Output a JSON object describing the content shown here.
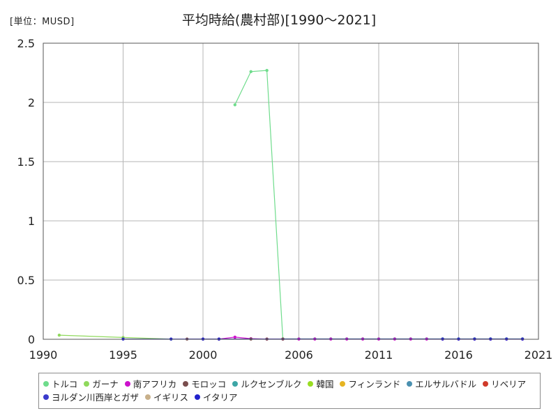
{
  "header": {
    "unit_label": "[単位：MUSD]",
    "title": "平均時給(農村部)[1990～2021]"
  },
  "chart_data": {
    "type": "line",
    "title": "平均時給(農村部)[1990～2021]",
    "unit": "[単位：MUSD]",
    "xlim": [
      1990,
      2021
    ],
    "ylim": [
      0,
      2.5
    ],
    "x_ticks": [
      1990,
      1995,
      2000,
      2006,
      2011,
      2016,
      2021
    ],
    "x_tick_labels": [
      "1990",
      "1995",
      "2000",
      "2006",
      "2011",
      "2016",
      "2021"
    ],
    "y_ticks": [
      0,
      0.5,
      1,
      1.5,
      2,
      2.5
    ],
    "y_tick_labels": [
      "0",
      "0.5",
      "1",
      "1.5",
      "2",
      "2.5"
    ],
    "grid": true,
    "legend_position": "bottom",
    "series": [
      {
        "name": "トルコ",
        "color": "#6fdc8c",
        "points": [
          [
            2002,
            1.98
          ],
          [
            2003,
            2.26
          ],
          [
            2004,
            2.27
          ],
          [
            2005,
            0.004
          ],
          [
            2006,
            0.004
          ],
          [
            2007,
            0.004
          ],
          [
            2008,
            0.004
          ],
          [
            2009,
            0.004
          ],
          [
            2010,
            0.004
          ],
          [
            2011,
            0.004
          ],
          [
            2012,
            0.004
          ],
          [
            2013,
            0.004
          ],
          [
            2014,
            0.004
          ],
          [
            2015,
            0.004
          ],
          [
            2016,
            0.004
          ],
          [
            2017,
            0.004
          ],
          [
            2018,
            0.004
          ],
          [
            2019,
            0.004
          ],
          [
            2020,
            0.004
          ]
        ]
      },
      {
        "name": "ガーナ",
        "color": "#8fd95c",
        "points": [
          [
            1991,
            0.035
          ],
          [
            1995,
            0.015
          ],
          [
            1998,
            0.002
          ]
        ]
      },
      {
        "name": "南アフリカ",
        "color": "#cc11cc",
        "points": [
          [
            2001,
            0.002
          ],
          [
            2002,
            0.018
          ],
          [
            2003,
            0.005
          ],
          [
            2004,
            0.002
          ],
          [
            2005,
            0.002
          ],
          [
            2006,
            0.002
          ],
          [
            2007,
            0.002
          ],
          [
            2008,
            0.002
          ],
          [
            2009,
            0.002
          ],
          [
            2010,
            0.002
          ],
          [
            2011,
            0.002
          ],
          [
            2012,
            0.002
          ],
          [
            2013,
            0.002
          ],
          [
            2014,
            0.002
          ],
          [
            2015,
            0.002
          ],
          [
            2016,
            0.002
          ],
          [
            2017,
            0.002
          ],
          [
            2018,
            0.002
          ],
          [
            2019,
            0.002
          ],
          [
            2020,
            0.002
          ]
        ]
      },
      {
        "name": "モロッコ",
        "color": "#7a4e4e",
        "points": [
          [
            1999,
            0.002
          ],
          [
            2000,
            0.002
          ],
          [
            2001,
            0.002
          ],
          [
            2003,
            0.002
          ],
          [
            2004,
            0.002
          ],
          [
            2005,
            0.002
          ]
        ]
      },
      {
        "name": "ルクセンブルク",
        "color": "#3da6a6",
        "points": []
      },
      {
        "name": "韓国",
        "color": "#99dd22",
        "points": []
      },
      {
        "name": "フィンランド",
        "color": "#e6b422",
        "points": []
      },
      {
        "name": "エルサルバドル",
        "color": "#4a90b0",
        "points": []
      },
      {
        "name": "リベリア",
        "color": "#d03a2a",
        "points": []
      },
      {
        "name": "ヨルダン川西岸とガザ",
        "color": "#3a3acc",
        "points": []
      },
      {
        "name": "イギリス",
        "color": "#c8b08a",
        "points": []
      },
      {
        "name": "イタリア",
        "color": "#2222cc",
        "points": [
          [
            1995,
            0.002
          ],
          [
            1998,
            0.002
          ],
          [
            2000,
            0.002
          ],
          [
            2001,
            0.002
          ],
          [
            2015,
            0.002
          ],
          [
            2016,
            0.002
          ],
          [
            2017,
            0.002
          ],
          [
            2018,
            0.002
          ],
          [
            2019,
            0.002
          ],
          [
            2020,
            0.002
          ]
        ]
      }
    ]
  }
}
